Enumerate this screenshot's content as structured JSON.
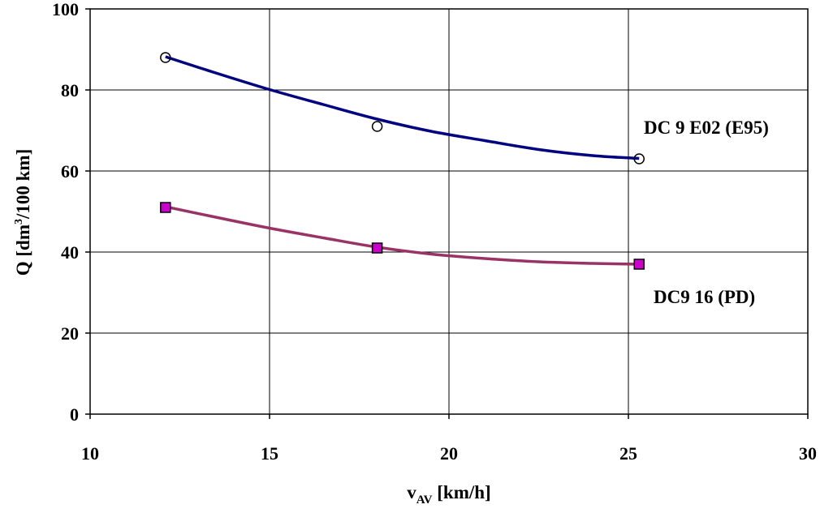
{
  "chart_data": {
    "type": "line",
    "title": "",
    "xlabel": {
      "main": "v",
      "sub": "AV",
      "rest": " [km/h]"
    },
    "ylabel": {
      "pre": "Q [dm",
      "sup": "3",
      "post": "/100 km]"
    },
    "xlim": [
      10,
      30
    ],
    "ylim": [
      0,
      100
    ],
    "xticks": [
      10,
      15,
      20,
      25,
      30
    ],
    "yticks": [
      0,
      20,
      40,
      60,
      80,
      100
    ],
    "xtick_labels": [
      "10",
      "15",
      "20",
      "25",
      "30"
    ],
    "ytick_labels": [
      "0",
      "20",
      "40",
      "60",
      "80",
      "100"
    ],
    "grid": true,
    "series": [
      {
        "name": "DC 9 E02 (E95)",
        "marker": "circle",
        "color": "#000080",
        "x": [
          12.1,
          18.0,
          25.3
        ],
        "y": [
          88,
          71,
          63
        ],
        "fit": [
          [
            12.1,
            88.2
          ],
          [
            13.5,
            84.2
          ],
          [
            15.0,
            80.1
          ],
          [
            16.5,
            76.4
          ],
          [
            18.0,
            72.8
          ],
          [
            19.5,
            69.8
          ],
          [
            21.0,
            67.5
          ],
          [
            22.5,
            65.3
          ],
          [
            24.0,
            63.8
          ],
          [
            25.3,
            63.1
          ]
        ]
      },
      {
        "name": "DC9 16 (PD)",
        "marker": "square",
        "color": "#993366",
        "marker_color": "#cc00cc",
        "x": [
          12.1,
          18.0,
          25.3
        ],
        "y": [
          51,
          41,
          37
        ],
        "fit": [
          [
            12.1,
            51.2
          ],
          [
            13.5,
            48.6
          ],
          [
            15.0,
            45.9
          ],
          [
            16.5,
            43.5
          ],
          [
            18.0,
            41.2
          ],
          [
            19.5,
            39.5
          ],
          [
            21.0,
            38.4
          ],
          [
            22.5,
            37.6
          ],
          [
            24.0,
            37.2
          ],
          [
            25.3,
            37.0
          ]
        ]
      }
    ]
  }
}
